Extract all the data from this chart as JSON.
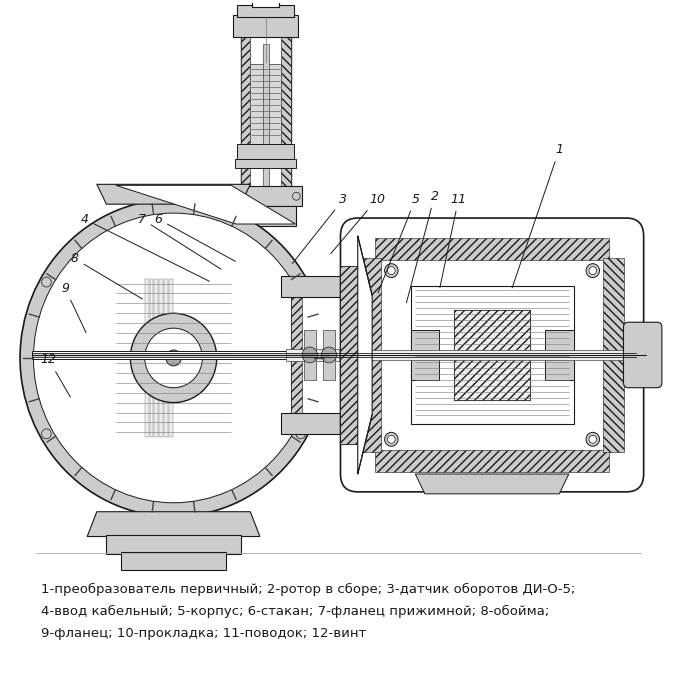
{
  "background_color": "#ffffff",
  "caption_lines": [
    "1-преобразователь первичный; 2-ротор в сборе; 3-датчик оборотов ДИ-О-5;",
    "4-ввод кабельный; 5-корпус; 6-стакан; 7-фланец прижимной; 8-обойма;",
    "9-фланец; 10-прокладка; 11-поводок; 12-винт"
  ],
  "caption_fontsize": 9.5,
  "fig_width": 7.0,
  "fig_height": 7.0,
  "dpi": 100,
  "dark": "#1a1a1a",
  "med": "#444444",
  "light": "#777777",
  "fill_white": "#ffffff",
  "fill_hatch": "#d8d8d8",
  "fill_light": "#eeeeee",
  "fill_med": "#cccccc",
  "fill_dark": "#aaaaaa"
}
